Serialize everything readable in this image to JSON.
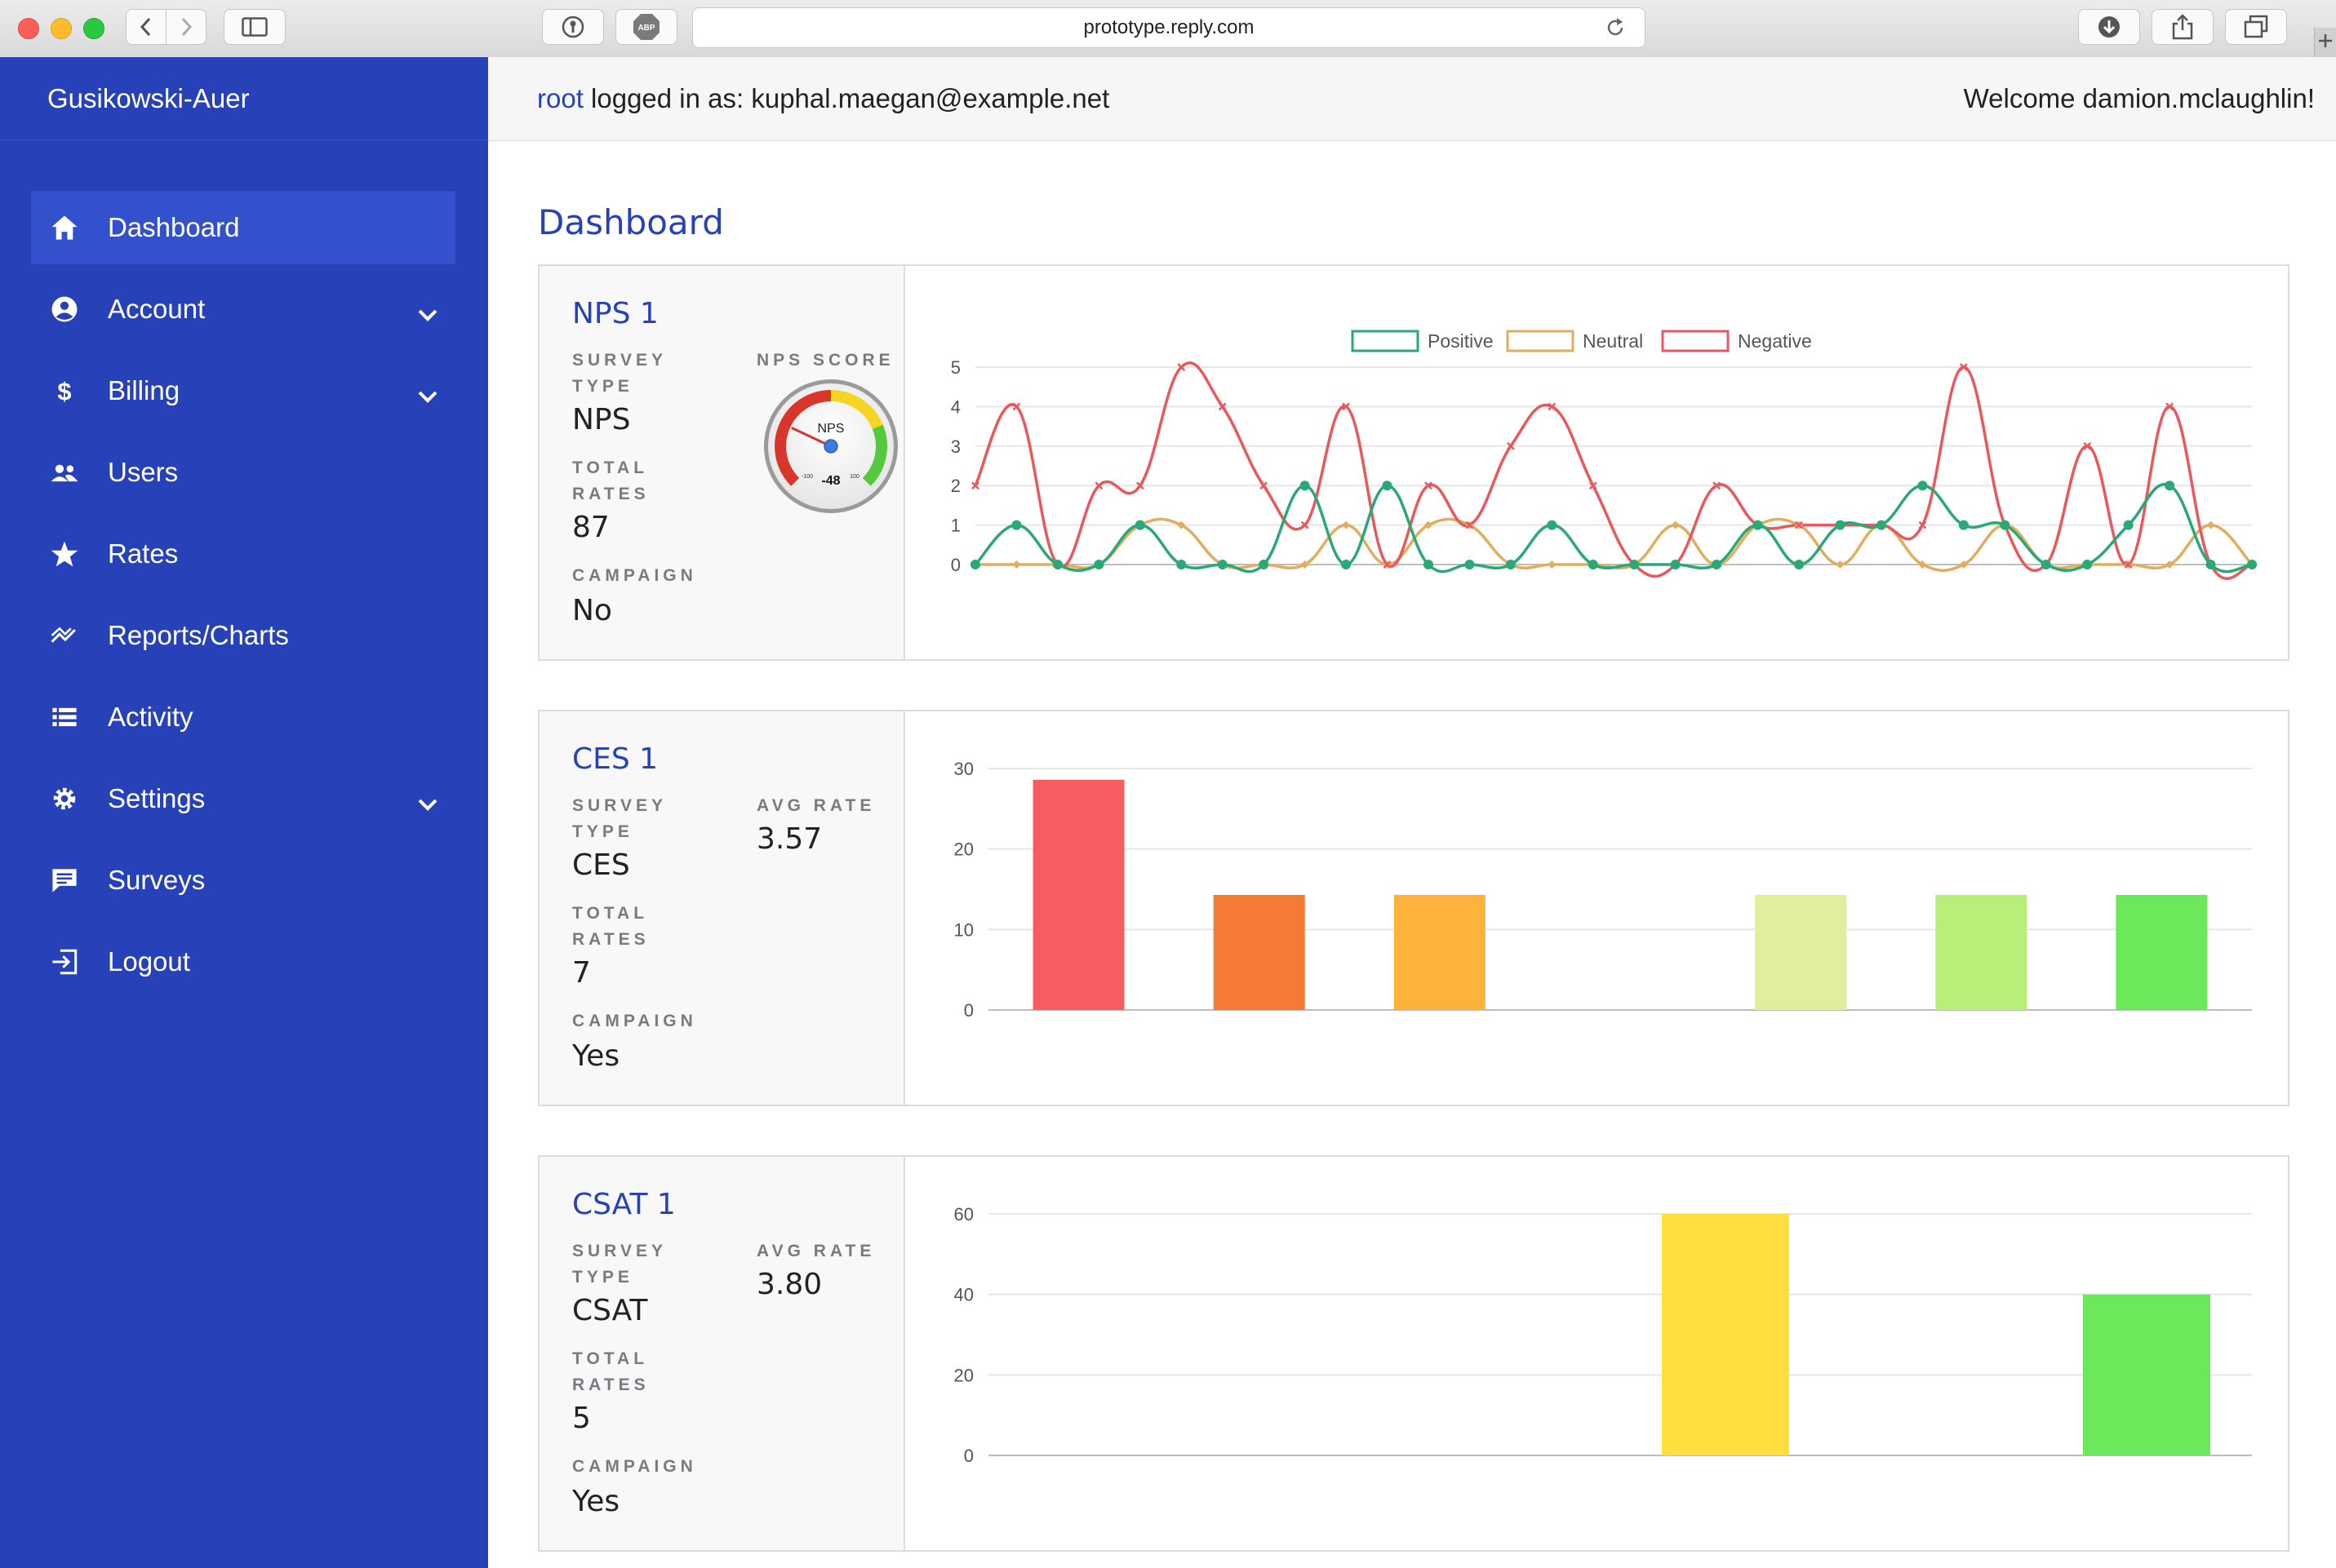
{
  "browser": {
    "url": "prototype.reply.com",
    "abp_label": "ABP"
  },
  "sidebar": {
    "brand": "Gusikowski-Auer",
    "items": [
      {
        "label": "Dashboard",
        "icon": "home-icon",
        "active": true,
        "chevron": false
      },
      {
        "label": "Account",
        "icon": "account-icon",
        "active": false,
        "chevron": true
      },
      {
        "label": "Billing",
        "icon": "dollar-icon",
        "active": false,
        "chevron": true
      },
      {
        "label": "Users",
        "icon": "users-icon",
        "active": false,
        "chevron": false
      },
      {
        "label": "Rates",
        "icon": "star-icon",
        "active": false,
        "chevron": false
      },
      {
        "label": "Reports/Charts",
        "icon": "trend-icon",
        "active": false,
        "chevron": false
      },
      {
        "label": "Activity",
        "icon": "list-icon",
        "active": false,
        "chevron": false
      },
      {
        "label": "Settings",
        "icon": "gear-icon",
        "active": false,
        "chevron": true
      },
      {
        "label": "Surveys",
        "icon": "chat-icon",
        "active": false,
        "chevron": false
      },
      {
        "label": "Logout",
        "icon": "logout-icon",
        "active": false,
        "chevron": false
      }
    ]
  },
  "header": {
    "root_link": "root",
    "logged_in_text": " logged in as: kuphal.maegan@example.net",
    "welcome": "Welcome damion.mclaughlin!"
  },
  "page": {
    "title": "Dashboard"
  },
  "colors": {
    "sidebar": "#2742b9",
    "accent": "#2742b9",
    "positive": "#2aa876",
    "neutral": "#e0ae5e",
    "negative": "#e8585c"
  },
  "cards": [
    {
      "title": "NPS 1",
      "survey_type_label": "SURVEY TYPE",
      "survey_type": "NPS",
      "total_rates_label": "TOTAL RATES",
      "total_rates": "87",
      "campaign_label": "CAMPAIGN",
      "campaign": "No",
      "score_label": "NPS SCORE",
      "gauge": {
        "label": "NPS",
        "value": "-48",
        "value_num": -48,
        "min": "-100",
        "max": "100"
      }
    },
    {
      "title": "CES 1",
      "survey_type_label": "SURVEY TYPE",
      "survey_type": "CES",
      "total_rates_label": "TOTAL RATES",
      "total_rates": "7",
      "campaign_label": "CAMPAIGN",
      "campaign": "Yes",
      "avg_label": "AVG RATE",
      "avg_rate": "3.57"
    },
    {
      "title": "CSAT 1",
      "survey_type_label": "SURVEY TYPE",
      "survey_type": "CSAT",
      "total_rates_label": "TOTAL RATES",
      "total_rates": "5",
      "campaign_label": "CAMPAIGN",
      "campaign": "Yes",
      "avg_label": "AVG RATE",
      "avg_rate": "3.80"
    }
  ],
  "chart_data": [
    {
      "type": "line",
      "legend_position": "top",
      "grid": true,
      "ylim": [
        0,
        5
      ],
      "yticks": [
        "0",
        "1",
        "2",
        "3",
        "4",
        "5"
      ],
      "x_count": 32,
      "series": [
        {
          "name": "Positive",
          "color": "#2aa876",
          "values": [
            0,
            1,
            0,
            0,
            1,
            0,
            0,
            0,
            2,
            0,
            2,
            0,
            0,
            0,
            1,
            0,
            0,
            0,
            0,
            1,
            0,
            1,
            1,
            2,
            1,
            1,
            0,
            0,
            1,
            2,
            0,
            0
          ]
        },
        {
          "name": "Neutral",
          "color": "#e0ae5e",
          "values": [
            0,
            0,
            0,
            0,
            1,
            1,
            0,
            0,
            0,
            1,
            0,
            1,
            1,
            0,
            0,
            0,
            0,
            1,
            0,
            1,
            1,
            0,
            1,
            0,
            0,
            1,
            0,
            0,
            0,
            0,
            1,
            0
          ]
        },
        {
          "name": "Negative",
          "color": "#e8585c",
          "values": [
            2,
            4,
            0,
            2,
            2,
            5,
            4,
            2,
            1,
            4,
            0,
            2,
            1,
            3,
            4,
            2,
            0,
            0,
            2,
            1,
            1,
            1,
            1,
            1,
            5,
            1,
            0,
            3,
            0,
            4,
            0,
            0
          ]
        }
      ]
    },
    {
      "type": "bar",
      "grid": true,
      "ylim": [
        0,
        30
      ],
      "yticks": [
        "0",
        "10",
        "20",
        "30"
      ],
      "values": [
        28.6,
        14.3,
        14.3,
        0,
        14.3,
        14.3,
        14.3
      ],
      "colors": [
        "#f55d61",
        "#f57a35",
        "#fdb33b",
        "#f9e14a",
        "#e1ef9c",
        "#b8ef78",
        "#6be95b"
      ]
    },
    {
      "type": "bar",
      "grid": true,
      "ylim": [
        0,
        60
      ],
      "yticks": [
        "0",
        "20",
        "40",
        "60"
      ],
      "values": [
        0,
        0,
        0,
        60,
        0,
        40
      ],
      "colors": [
        "#f55d61",
        "#f57a35",
        "#fdb33b",
        "#fedf3f",
        "#b8ef78",
        "#6be95b"
      ]
    }
  ]
}
